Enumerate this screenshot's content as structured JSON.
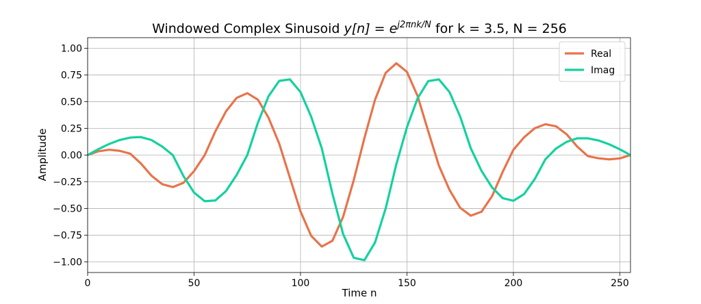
{
  "chart_data": {
    "type": "line",
    "title": {
      "prefix": "Windowed Complex Sinusoid ",
      "math": "y[n] = e",
      "superscript": "j2πnk/N",
      "suffix": " for k = 3.5, N = 256"
    },
    "xlabel": "Time n",
    "ylabel": "Amplitude",
    "x": [
      0,
      5,
      10,
      15,
      20,
      25,
      30,
      35,
      40,
      45,
      50,
      55,
      60,
      65,
      70,
      75,
      80,
      85,
      90,
      95,
      100,
      105,
      110,
      115,
      120,
      125,
      130,
      135,
      140,
      145,
      150,
      155,
      160,
      165,
      170,
      175,
      180,
      185,
      190,
      195,
      200,
      205,
      210,
      215,
      220,
      225,
      230,
      235,
      240,
      245,
      250,
      255
    ],
    "series": [
      {
        "name": "Real",
        "color": "#e8734a",
        "values": [
          0,
          0.035,
          0.05,
          0.04,
          0.013,
          -0.078,
          -0.193,
          -0.272,
          -0.3,
          -0.26,
          -0.15,
          0,
          0.222,
          0.41,
          0.536,
          0.58,
          0.519,
          0.349,
          0.107,
          -0.211,
          -0.528,
          -0.756,
          -0.857,
          -0.802,
          -0.579,
          -0.235,
          0.158,
          0.518,
          0.77,
          0.86,
          0.779,
          0.553,
          0.223,
          -0.099,
          -0.327,
          -0.494,
          -0.568,
          -0.531,
          -0.384,
          -0.156,
          0.05,
          0.166,
          0.251,
          0.289,
          0.27,
          0.195,
          0.079,
          -0.01,
          -0.03,
          -0.04,
          -0.031,
          0
        ]
      },
      {
        "name": "Imag",
        "color": "#14d19e",
        "values": [
          0,
          0.055,
          0.103,
          0.141,
          0.164,
          0.169,
          0.141,
          0.08,
          0,
          -0.196,
          -0.351,
          -0.432,
          -0.425,
          -0.337,
          -0.186,
          0,
          0.304,
          0.552,
          0.695,
          0.709,
          0.59,
          0.36,
          0.063,
          -0.362,
          -0.739,
          -0.962,
          -0.985,
          -0.819,
          -0.5,
          -0.087,
          0.261,
          0.532,
          0.693,
          0.709,
          0.59,
          0.36,
          0.063,
          -0.147,
          -0.304,
          -0.404,
          -0.428,
          -0.366,
          -0.226,
          -0.04,
          0.061,
          0.124,
          0.157,
          0.157,
          0.137,
          0.101,
          0.054,
          0
        ]
      }
    ],
    "xlim": [
      0,
      255
    ],
    "ylim": [
      -1.1,
      1.1
    ],
    "xticks": [
      0,
      50,
      100,
      150,
      200,
      250
    ],
    "yticks": [
      {
        "value": -1,
        "label": "−1.00"
      },
      {
        "value": -0.75,
        "label": "−0.75"
      },
      {
        "value": -0.5,
        "label": "−0.50"
      },
      {
        "value": -0.25,
        "label": "−0.25"
      },
      {
        "value": 0,
        "label": "0.00"
      },
      {
        "value": 0.25,
        "label": "0.25"
      },
      {
        "value": 0.5,
        "label": "0.50"
      },
      {
        "value": 0.75,
        "label": "0.75"
      },
      {
        "value": 1,
        "label": "1.00"
      }
    ],
    "grid": true,
    "legend": "upper right"
  }
}
